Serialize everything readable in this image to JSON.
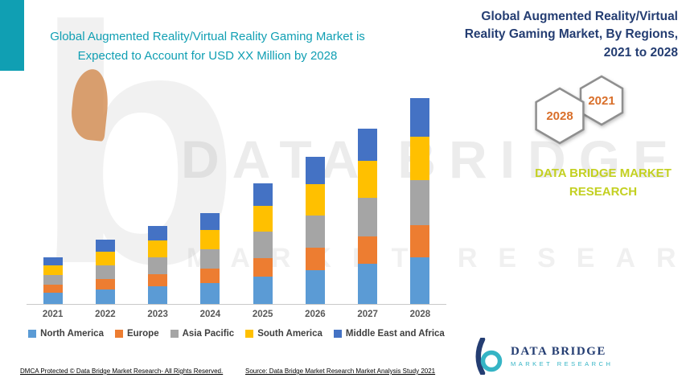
{
  "colors": {
    "teal": "#109fb3",
    "navy": "#243d72",
    "brand_yellow_green": "#c3d021",
    "hexagon_text_orange": "#d96f2a",
    "logo_teal": "#35b4c5"
  },
  "left_title": {
    "lines": [
      "Global Augmented Reality/Virtual Reality Gaming Market is",
      "Expected to Account for USD XX Million by 2028"
    ]
  },
  "right_title": {
    "lines": [
      "Global Augmented Reality/Virtual",
      "Reality Gaming Market, By Regions,",
      "2021 to 2028"
    ]
  },
  "hexagons": [
    {
      "label": "2028"
    },
    {
      "label": "2021"
    }
  ],
  "brand": {
    "lines": [
      "DATA BRIDGE MARKET",
      "RESEARCH"
    ]
  },
  "watermark": {
    "line1": "DATA BRIDGE",
    "line2": "MARKET RESEARCH",
    "letter": "b"
  },
  "logo": {
    "title": "DATA BRIDGE",
    "subtitle": "MARKET RESEARCH"
  },
  "footer": {
    "dmca": "DMCA Protected © Data Bridge Market Research- All Rights Reserved.",
    "source": "Source: Data Bridge Market Research Market Analysis Study 2021"
  },
  "chart_data": {
    "type": "bar",
    "stacked": true,
    "title": "Global Augmented Reality/Virtual Reality Gaming Market is Expected to Account for USD XX Million by 2028",
    "categories": [
      "2021",
      "2022",
      "2023",
      "2024",
      "2025",
      "2026",
      "2027",
      "2028"
    ],
    "series": [
      {
        "name": "North America",
        "color": "#5B9BD5",
        "values": [
          14,
          18,
          22,
          26,
          34,
          42,
          50,
          58
        ]
      },
      {
        "name": "Europe",
        "color": "#ED7D31",
        "values": [
          10,
          13,
          15,
          18,
          23,
          28,
          34,
          40
        ]
      },
      {
        "name": "Asia Pacific",
        "color": "#A5A5A5",
        "values": [
          12,
          17,
          21,
          24,
          33,
          40,
          48,
          56
        ]
      },
      {
        "name": "South America",
        "color": "#FFC000",
        "values": [
          12,
          17,
          21,
          24,
          32,
          39,
          46,
          54
        ]
      },
      {
        "name": "Middle East and Africa",
        "color": "#4472C4",
        "values": [
          10,
          15,
          18,
          21,
          28,
          34,
          40,
          48
        ]
      }
    ],
    "xlabel": "",
    "ylabel": "",
    "note": "No value axis shown in figure; values are relative units estimated from bar heights (market sized as USD XX Million).",
    "legend_position": "bottom",
    "grid": false
  }
}
